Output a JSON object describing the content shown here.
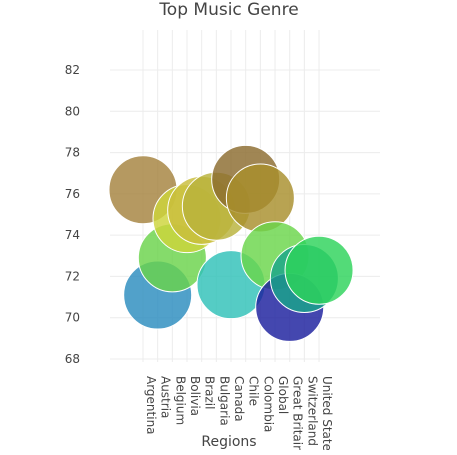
{
  "chart_data": {
    "type": "scatter",
    "title": "Top Music Genre",
    "xlabel": "Regions",
    "ylabel": "",
    "ylim": [
      68,
      84
    ],
    "yticks": [
      68,
      70,
      72,
      74,
      76,
      78,
      80,
      82
    ],
    "grid": true,
    "categories": [
      "Argentina",
      "Austria",
      "Belgium",
      "Bolivia",
      "Brazil",
      "Bulgaria",
      "Canada",
      "Chile",
      "Colombia",
      "Global",
      "Great Britain",
      "Switzerland",
      "United States"
    ],
    "points": [
      {
        "x": "Argentina",
        "y": 76.2,
        "color": "#a5823e"
      },
      {
        "x": "Austria",
        "y": 71.1,
        "color": "#2b8cbe"
      },
      {
        "x": "Belgium",
        "y": 72.9,
        "color": "#6ad34a"
      },
      {
        "x": "Bolivia",
        "y": 74.8,
        "color": "#cdd43a"
      },
      {
        "x": "Brazil",
        "y": 75.2,
        "color": "#c9bd3c"
      },
      {
        "x": "Bulgaria",
        "y": 75.4,
        "color": "#b8b23a"
      },
      {
        "x": "Canada",
        "y": 71.6,
        "color": "#2fc1b8"
      },
      {
        "x": "Chile",
        "y": 76.7,
        "color": "#8b6b2e"
      },
      {
        "x": "Colombia",
        "y": 75.8,
        "color": "#a88f2c"
      },
      {
        "x": "Global",
        "y": 73.0,
        "color": "#6ad64a"
      },
      {
        "x": "Great Britain",
        "y": 70.5,
        "color": "#1b1f9e"
      },
      {
        "x": "Switzerland",
        "y": 71.9,
        "color": "#1aa58a"
      },
      {
        "x": "United States",
        "y": 72.3,
        "color": "#2dd35a"
      }
    ]
  }
}
